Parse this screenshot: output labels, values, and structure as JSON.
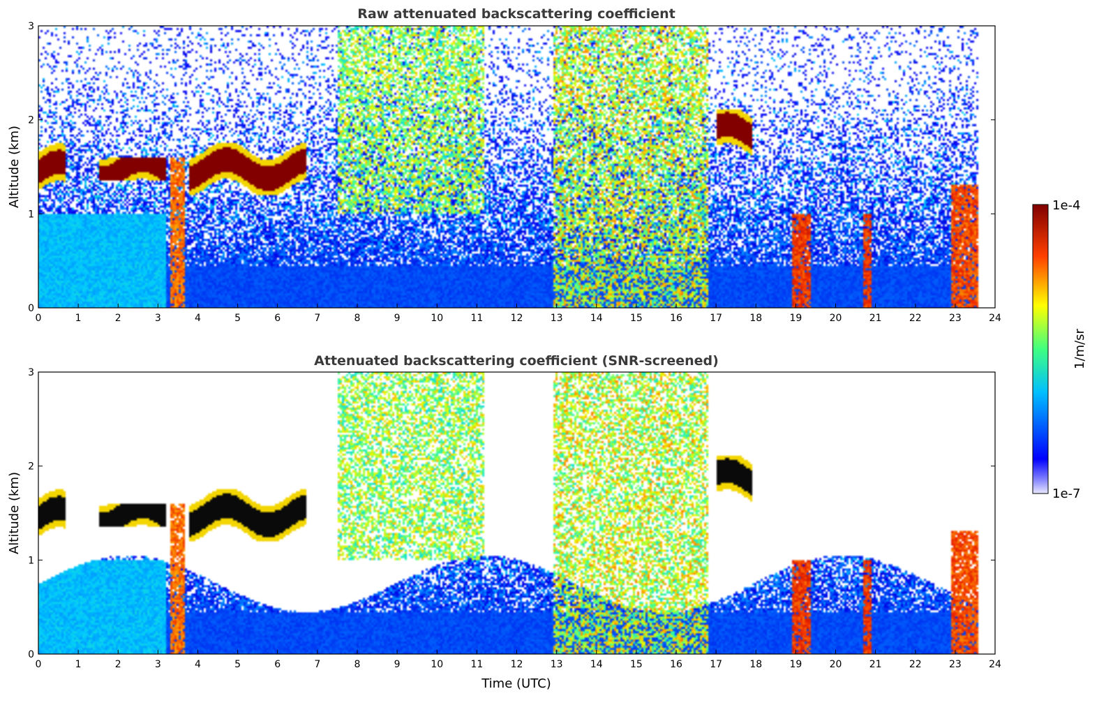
{
  "chart_data": [
    {
      "type": "heatmap",
      "title": "Raw attenuated backscattering coefficient",
      "xlabel": "",
      "ylabel": "Altitude (km)",
      "xlim": [
        0,
        24
      ],
      "ylim": [
        0,
        3
      ],
      "x_ticks": [
        0,
        1,
        2,
        3,
        4,
        5,
        6,
        7,
        8,
        9,
        10,
        11,
        12,
        13,
        14,
        15,
        16,
        17,
        18,
        19,
        20,
        21,
        22,
        23,
        24
      ],
      "y_ticks": [
        0,
        1,
        2,
        3
      ],
      "screened": false,
      "features": [
        {
          "kind": "cloud",
          "t0": 0.0,
          "t1": 0.7,
          "z0": 1.15,
          "z1": 1.75,
          "level": 1.0
        },
        {
          "kind": "cloud",
          "t0": 1.5,
          "t1": 3.2,
          "z0": 1.35,
          "z1": 1.6,
          "level": 1.0
        },
        {
          "kind": "cloud",
          "t0": 3.8,
          "t1": 6.7,
          "z0": 1.2,
          "z1": 1.75,
          "level": 1.0
        },
        {
          "kind": "cloud",
          "t0": 17.0,
          "t1": 17.9,
          "z0": 1.6,
          "z1": 2.1,
          "level": 1.0
        },
        {
          "kind": "precip",
          "t0": 3.3,
          "t1": 3.7,
          "z0": 0.0,
          "z1": 1.6,
          "level": 0.85
        },
        {
          "kind": "virga",
          "t0": 7.5,
          "t1": 11.2,
          "z0": 1.0,
          "z1": 3.0,
          "level": 0.7
        },
        {
          "kind": "virga",
          "t0": 12.9,
          "t1": 16.8,
          "z0": 0.0,
          "z1": 3.0,
          "level": 0.75
        },
        {
          "kind": "precip",
          "t0": 18.9,
          "t1": 19.4,
          "z0": 0.0,
          "z1": 1.0,
          "level": 0.9
        },
        {
          "kind": "precip",
          "t0": 20.7,
          "t1": 20.9,
          "z0": 0.0,
          "z1": 1.0,
          "level": 0.9
        },
        {
          "kind": "precip",
          "t0": 22.9,
          "t1": 23.6,
          "z0": 0.0,
          "z1": 1.3,
          "level": 0.88
        }
      ]
    },
    {
      "type": "heatmap",
      "title": "Attenuated backscattering coefficient (SNR-screened)",
      "xlabel": "Time (UTC)",
      "ylabel": "Altitude (km)",
      "xlim": [
        0,
        24
      ],
      "ylim": [
        0,
        3
      ],
      "x_ticks": [
        0,
        1,
        2,
        3,
        4,
        5,
        6,
        7,
        8,
        9,
        10,
        11,
        12,
        13,
        14,
        15,
        16,
        17,
        18,
        19,
        20,
        21,
        22,
        23,
        24
      ],
      "y_ticks": [
        0,
        1,
        2,
        3
      ],
      "screened": true,
      "features": [
        {
          "kind": "cloud",
          "t0": 0.0,
          "t1": 0.7,
          "z0": 1.15,
          "z1": 1.75,
          "level": 1.0
        },
        {
          "kind": "cloud",
          "t0": 1.5,
          "t1": 3.2,
          "z0": 1.35,
          "z1": 1.6,
          "level": 1.0
        },
        {
          "kind": "cloud",
          "t0": 3.8,
          "t1": 6.7,
          "z0": 1.2,
          "z1": 1.75,
          "level": 1.0
        },
        {
          "kind": "cloud",
          "t0": 17.0,
          "t1": 17.9,
          "z0": 1.6,
          "z1": 2.1,
          "level": 1.0
        },
        {
          "kind": "precip",
          "t0": 3.3,
          "t1": 3.7,
          "z0": 0.0,
          "z1": 1.6,
          "level": 0.85
        },
        {
          "kind": "virga",
          "t0": 7.5,
          "t1": 11.2,
          "z0": 1.0,
          "z1": 3.0,
          "level": 0.7
        },
        {
          "kind": "virga",
          "t0": 12.9,
          "t1": 16.8,
          "z0": 0.0,
          "z1": 3.0,
          "level": 0.75
        },
        {
          "kind": "precip",
          "t0": 18.9,
          "t1": 19.4,
          "z0": 0.0,
          "z1": 1.0,
          "level": 0.9
        },
        {
          "kind": "precip",
          "t0": 20.7,
          "t1": 20.9,
          "z0": 0.0,
          "z1": 1.0,
          "level": 0.9
        },
        {
          "kind": "precip",
          "t0": 22.9,
          "t1": 23.6,
          "z0": 0.0,
          "z1": 1.3,
          "level": 0.88
        }
      ]
    }
  ],
  "colorbar": {
    "label": "1/m/sr",
    "max_label": "1e-4",
    "min_label": "1e-7",
    "range": [
      1e-07,
      0.0001
    ],
    "scale": "log",
    "colormap": "jet"
  }
}
